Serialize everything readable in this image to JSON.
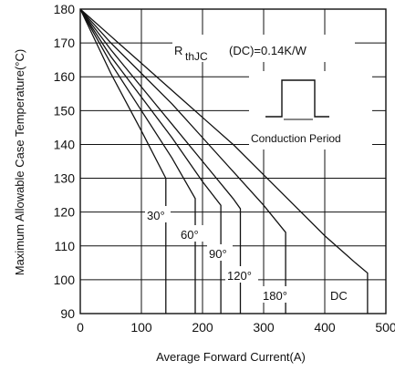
{
  "chart_data": {
    "type": "line",
    "xlabel": "Average Forward Current(A)",
    "ylabel": "Maximum Allowable Case Temperature(°C)",
    "xlim": [
      0,
      500
    ],
    "ylim": [
      90,
      180
    ],
    "x_ticks": [
      0,
      100,
      200,
      300,
      400,
      500
    ],
    "y_ticks": [
      90,
      100,
      110,
      120,
      130,
      140,
      150,
      160,
      170,
      180
    ],
    "grid": true,
    "series": [
      {
        "name": "30°",
        "points": [
          [
            0,
            180
          ],
          [
            50,
            161
          ],
          [
            100,
            144
          ],
          [
            140,
            130
          ],
          [
            140,
            90
          ]
        ]
      },
      {
        "name": "60°",
        "points": [
          [
            0,
            180
          ],
          [
            50,
            164
          ],
          [
            100,
            150
          ],
          [
            150,
            136
          ],
          [
            188,
            124
          ],
          [
            188,
            90
          ]
        ]
      },
      {
        "name": "90°",
        "points": [
          [
            0,
            180
          ],
          [
            50,
            166
          ],
          [
            100,
            154
          ],
          [
            150,
            142
          ],
          [
            200,
            129
          ],
          [
            230,
            122
          ],
          [
            230,
            90
          ]
        ]
      },
      {
        "name": "120°",
        "points": [
          [
            0,
            180
          ],
          [
            50,
            168
          ],
          [
            100,
            157
          ],
          [
            150,
            146
          ],
          [
            200,
            135
          ],
          [
            250,
            124
          ],
          [
            262,
            121
          ],
          [
            262,
            90
          ]
        ]
      },
      {
        "name": "180°",
        "points": [
          [
            0,
            180
          ],
          [
            50,
            170
          ],
          [
            100,
            161
          ],
          [
            150,
            152
          ],
          [
            200,
            142
          ],
          [
            250,
            132
          ],
          [
            300,
            122
          ],
          [
            336,
            114
          ],
          [
            336,
            90
          ]
        ]
      },
      {
        "name": "DC",
        "points": [
          [
            0,
            180
          ],
          [
            50,
            172
          ],
          [
            100,
            164
          ],
          [
            150,
            156
          ],
          [
            200,
            148
          ],
          [
            250,
            140
          ],
          [
            300,
            131
          ],
          [
            350,
            122
          ],
          [
            400,
            113
          ],
          [
            450,
            105
          ],
          [
            470,
            102
          ],
          [
            470,
            90
          ]
        ]
      }
    ],
    "annotations": {
      "rth_main": "R",
      "rth_sub": "thJC",
      "rth_rest": "(DC)=0.14K/W",
      "conduction_label": "Conduction  Period"
    }
  }
}
